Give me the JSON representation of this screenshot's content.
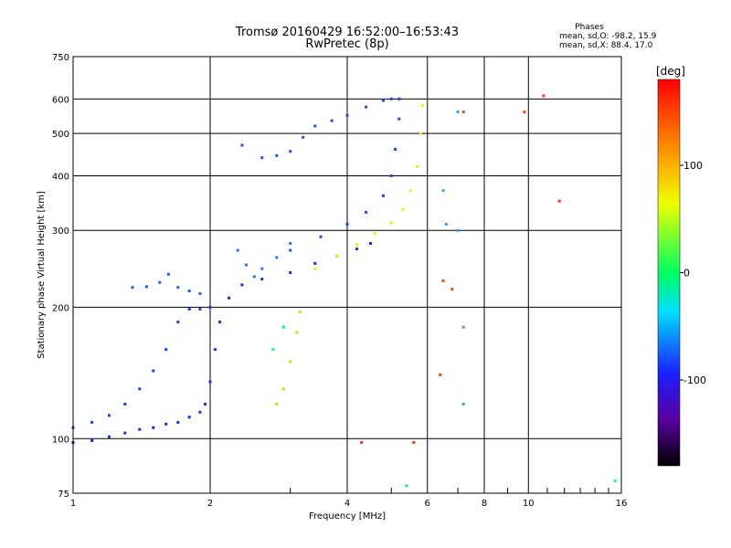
{
  "chart_data": {
    "type": "scatter",
    "title": "Tromsø 20160429 16:52:00–16:53:43",
    "subtitle": "RwPretec (8p)",
    "phases": {
      "heading": "Phases",
      "o_line": "mean, sd,O: -98.2, 15.9",
      "x_line": "mean, sd,X:  88.4, 17.0"
    },
    "xlabel": "Frequency [MHz]",
    "ylabel": "Stationary phase Virtual Height [km]",
    "x_scale": "log",
    "y_scale": "log",
    "xlim": [
      1,
      16
    ],
    "ylim": [
      75,
      750
    ],
    "x_ticks": [
      1,
      2,
      4,
      6,
      8,
      10,
      16
    ],
    "x_ticklabels": [
      "1",
      "2",
      "4",
      "6",
      "8",
      "10",
      "16"
    ],
    "y_ticks": [
      75,
      100,
      200,
      300,
      400,
      500,
      600,
      750
    ],
    "y_ticklabels": [
      "75",
      "100",
      "200",
      "300",
      "400",
      "500",
      "600",
      "750"
    ],
    "grid": true,
    "colorbar": {
      "label": "[deg]",
      "range": [
        -180,
        180
      ],
      "ticks": [
        100,
        0,
        -100
      ],
      "ticklabels": [
        "100",
        "0",
        "-100"
      ]
    },
    "series": [
      {
        "color": "#1030e0",
        "phase": -110,
        "points": [
          [
            1.0,
            98
          ],
          [
            1.1,
            99
          ],
          [
            1.2,
            101
          ],
          [
            1.3,
            103
          ],
          [
            1.4,
            105
          ],
          [
            1.5,
            106
          ],
          [
            1.6,
            108
          ],
          [
            1.7,
            109
          ],
          [
            1.8,
            112
          ],
          [
            1.9,
            115
          ],
          [
            1.95,
            120
          ],
          [
            2.0,
            135
          ],
          [
            2.05,
            160
          ],
          [
            2.1,
            185
          ],
          [
            2.2,
            210
          ],
          [
            2.35,
            225
          ],
          [
            2.6,
            232
          ],
          [
            3.0,
            240
          ],
          [
            3.4,
            252
          ],
          [
            3.8,
            262
          ],
          [
            4.2,
            272
          ],
          [
            4.5,
            280
          ]
        ]
      },
      {
        "color": "#1840e8",
        "phase": -105,
        "points": [
          [
            1.0,
            106
          ],
          [
            1.1,
            109
          ],
          [
            1.2,
            113
          ],
          [
            1.3,
            120
          ],
          [
            1.4,
            130
          ],
          [
            1.5,
            143
          ],
          [
            1.6,
            160
          ],
          [
            1.7,
            185
          ],
          [
            1.8,
            198
          ],
          [
            1.9,
            198
          ],
          [
            2.0,
            200
          ]
        ]
      },
      {
        "color": "#2060ff",
        "phase": -95,
        "points": [
          [
            1.35,
            222
          ],
          [
            1.45,
            223
          ],
          [
            1.55,
            228
          ],
          [
            1.62,
            238
          ],
          [
            1.7,
            222
          ],
          [
            1.8,
            218
          ],
          [
            1.9,
            215
          ]
        ]
      },
      {
        "color": "#2a70ff",
        "phase": -90,
        "points": [
          [
            2.3,
            270
          ],
          [
            2.4,
            250
          ],
          [
            2.5,
            235
          ],
          [
            2.6,
            245
          ],
          [
            2.8,
            260
          ],
          [
            3.0,
            280
          ]
        ]
      },
      {
        "color": "#1a4cf0",
        "phase": -100,
        "points": [
          [
            3.0,
            270
          ],
          [
            3.5,
            290
          ],
          [
            4.0,
            310
          ],
          [
            4.4,
            330
          ],
          [
            4.8,
            360
          ],
          [
            5.0,
            400
          ],
          [
            5.1,
            460
          ],
          [
            5.2,
            540
          ],
          [
            5.2,
            600
          ]
        ]
      },
      {
        "color": "#2050e8",
        "phase": -95,
        "points": [
          [
            2.35,
            470
          ],
          [
            2.6,
            440
          ],
          [
            2.8,
            445
          ],
          [
            3.0,
            455
          ],
          [
            3.2,
            490
          ],
          [
            3.4,
            520
          ],
          [
            3.7,
            535
          ],
          [
            4.0,
            550
          ],
          [
            4.4,
            575
          ],
          [
            4.8,
            595
          ],
          [
            5.0,
            600
          ]
        ]
      },
      {
        "color": "#f0f000",
        "phase": 100,
        "points": [
          [
            3.4,
            245
          ],
          [
            3.8,
            262
          ],
          [
            4.2,
            278
          ],
          [
            4.6,
            295
          ],
          [
            5.0,
            312
          ],
          [
            5.3,
            335
          ],
          [
            5.5,
            370
          ],
          [
            5.7,
            420
          ],
          [
            5.8,
            500
          ],
          [
            5.85,
            580
          ]
        ]
      },
      {
        "color": "#b0f000",
        "phase": 80,
        "points": [
          [
            2.8,
            120
          ],
          [
            2.9,
            130
          ],
          [
            3.0,
            150
          ],
          [
            3.1,
            175
          ],
          [
            3.15,
            195
          ]
        ]
      },
      {
        "color": "#30a0ff",
        "phase": -70,
        "points": [
          [
            6.5,
            370
          ],
          [
            6.6,
            310
          ],
          [
            7.0,
            300
          ],
          [
            7.2,
            180
          ],
          [
            7.2,
            120
          ],
          [
            7.0,
            560
          ]
        ]
      },
      {
        "color": "#ff4000",
        "phase": 150,
        "points": [
          [
            4.3,
            98
          ],
          [
            5.6,
            98
          ],
          [
            6.4,
            140
          ],
          [
            6.5,
            230
          ],
          [
            7.2,
            560
          ],
          [
            9.8,
            560
          ],
          [
            10.8,
            610
          ],
          [
            11.7,
            350
          ],
          [
            6.8,
            220
          ]
        ]
      },
      {
        "color": "#00ff80",
        "phase": 20,
        "points": [
          [
            2.75,
            160
          ],
          [
            2.9,
            180
          ],
          [
            5.4,
            78
          ],
          [
            15.5,
            80
          ]
        ]
      }
    ]
  }
}
